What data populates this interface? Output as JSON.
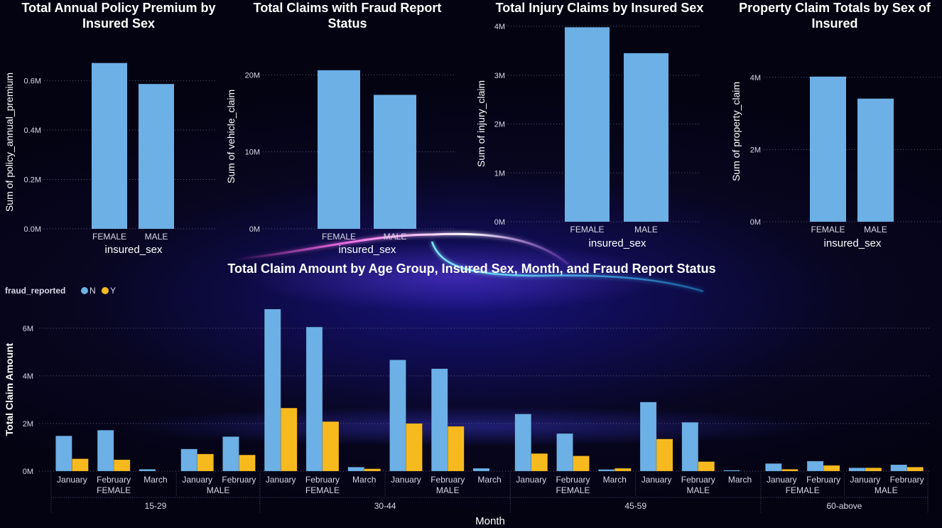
{
  "colors": {
    "N": "#6cb0e6",
    "Y": "#f7ba1e",
    "bar": "#6cb0e6"
  },
  "small_charts": [
    {
      "type": "bar",
      "title_lines": [
        "Total Annual Policy Premium by",
        "Insured Sex"
      ],
      "xlabel": "insured_sex",
      "ylabel": "Sum of policy_annual_premium",
      "categories": [
        "FEMALE",
        "MALE"
      ],
      "values": [
        0.672,
        0.587
      ],
      "ylim": [
        0,
        0.72
      ],
      "ticks": [
        0,
        0.2,
        0.4,
        0.6
      ],
      "tick_labels": [
        "0.0M",
        "0.2M",
        "0.4M",
        "0.6M"
      ]
    },
    {
      "type": "bar",
      "title_lines": [
        "Total Claims with Fraud Report",
        "Status"
      ],
      "xlabel": "insured_sex",
      "ylabel": "Sum of vehicle_claim",
      "categories": [
        "FEMALE",
        "MALE"
      ],
      "values": [
        20.6,
        17.4
      ],
      "ylim": [
        0,
        24
      ],
      "ticks": [
        0,
        10,
        20
      ],
      "tick_labels": [
        "0M",
        "10M",
        "20M"
      ]
    },
    {
      "type": "bar",
      "title_lines": [
        "Total Injury Claims by Insured Sex"
      ],
      "xlabel": "insured_sex",
      "ylabel": "Sum of injury_claim",
      "categories": [
        "FEMALE",
        "MALE"
      ],
      "values": [
        3.98,
        3.45
      ],
      "ylim": [
        0,
        4
      ],
      "ticks": [
        0,
        1,
        2,
        3,
        4
      ],
      "tick_labels": [
        "0M",
        "1M",
        "2M",
        "3M",
        "4M"
      ]
    },
    {
      "type": "bar",
      "title_lines": [
        "Property Claim Totals by Sex of",
        "Insured"
      ],
      "xlabel": "insured_sex",
      "ylabel": "Sum of property_claim",
      "categories": [
        "FEMALE",
        "MALE"
      ],
      "values": [
        4.02,
        3.41
      ],
      "ylim": [
        0,
        5.0
      ],
      "ticks": [
        0,
        2,
        4
      ],
      "tick_labels": [
        "0M",
        "2M",
        "4M"
      ]
    }
  ],
  "chart_data": {
    "type": "bar",
    "title": "Total Claim Amount by Age Group, Insured Sex, Month, and Fraud Report Status",
    "legend_title": "fraud_reported",
    "legend_position": "top-left",
    "xlabel": "Month",
    "ylabel": "Total Claim Amount",
    "ylim": [
      0,
      6.8
    ],
    "ticks": [
      0,
      2,
      4,
      6
    ],
    "tick_labels": [
      "0M",
      "2M",
      "4M",
      "6M"
    ],
    "series_names": [
      "N",
      "Y"
    ],
    "groups": [
      {
        "age": "15-29",
        "sexes": [
          {
            "sex": "FEMALE",
            "months": [
              {
                "month": "January",
                "N": 1.48,
                "Y": 0.52
              },
              {
                "month": "February",
                "N": 1.72,
                "Y": 0.48
              },
              {
                "month": "March",
                "N": 0.08,
                "Y": 0
              }
            ]
          },
          {
            "sex": "MALE",
            "months": [
              {
                "month": "January",
                "N": 0.93,
                "Y": 0.72
              },
              {
                "month": "February",
                "N": 1.45,
                "Y": 0.68
              }
            ]
          }
        ]
      },
      {
        "age": "30-44",
        "sexes": [
          {
            "sex": "FEMALE",
            "months": [
              {
                "month": "January",
                "N": 6.8,
                "Y": 2.65
              },
              {
                "month": "February",
                "N": 6.05,
                "Y": 2.08
              },
              {
                "month": "March",
                "N": 0.17,
                "Y": 0.1
              }
            ]
          },
          {
            "sex": "MALE",
            "months": [
              {
                "month": "January",
                "N": 4.67,
                "Y": 2.0
              },
              {
                "month": "February",
                "N": 4.3,
                "Y": 1.88
              },
              {
                "month": "March",
                "N": 0.12,
                "Y": 0
              }
            ]
          }
        ]
      },
      {
        "age": "45-59",
        "sexes": [
          {
            "sex": "FEMALE",
            "months": [
              {
                "month": "January",
                "N": 2.4,
                "Y": 0.74
              },
              {
                "month": "February",
                "N": 1.58,
                "Y": 0.64
              },
              {
                "month": "March",
                "N": 0.07,
                "Y": 0.12
              }
            ]
          },
          {
            "sex": "MALE",
            "months": [
              {
                "month": "January",
                "N": 2.9,
                "Y": 1.35
              },
              {
                "month": "February",
                "N": 2.05,
                "Y": 0.4
              },
              {
                "month": "March",
                "N": 0.04,
                "Y": 0
              }
            ]
          }
        ]
      },
      {
        "age": "60-above",
        "sexes": [
          {
            "sex": "FEMALE",
            "months": [
              {
                "month": "January",
                "N": 0.32,
                "Y": 0.08
              },
              {
                "month": "February",
                "N": 0.42,
                "Y": 0.24
              }
            ]
          },
          {
            "sex": "MALE",
            "months": [
              {
                "month": "January",
                "N": 0.14,
                "Y": 0.14
              },
              {
                "month": "February",
                "N": 0.27,
                "Y": 0.17
              }
            ]
          }
        ]
      }
    ]
  }
}
